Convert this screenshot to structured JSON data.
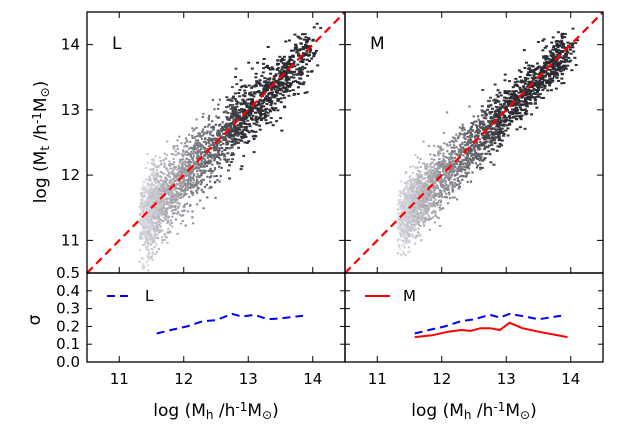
{
  "chart_data": {
    "type": "scatter",
    "colors": {
      "fit_line": "#ff0000",
      "sigma_L": "#0000ff",
      "sigma_M": "#ff0000",
      "points": "#3a3a44"
    },
    "shared": {
      "xlim": [
        10.5,
        14.5
      ],
      "x_ticks": [
        "11",
        "12",
        "13",
        "14"
      ],
      "x_tick_values": [
        11,
        12,
        13,
        14
      ],
      "top_ylim": [
        10.5,
        14.5
      ],
      "top_y_ticks": [
        "0.5",
        "11",
        "12",
        "13",
        "14"
      ],
      "top_y_tick_values": [
        10.5,
        11,
        12,
        13,
        14
      ],
      "bottom_ylim": [
        0.0,
        0.5
      ],
      "bottom_y_ticks": [
        "0.0",
        "0.1",
        "0.2",
        "0.3",
        "0.4"
      ],
      "bottom_y_tick_values": [
        0.0,
        0.1,
        0.2,
        0.3,
        0.4
      ]
    },
    "top_ylabel": {
      "main": "log (M",
      "sub": "t",
      "mid": " /h",
      "sup": "-1",
      "tail": "M",
      "sun_sub": "⊙",
      "close": ")"
    },
    "bottom_ylabel": "σ",
    "xlabel": {
      "main": "log (M",
      "sub": "h",
      "mid": " /h",
      "sup": "-1",
      "tail": "M",
      "sun_sub": "⊙",
      "close": ")"
    },
    "panels": [
      {
        "tag": "L",
        "scatter": {
          "description": "density of halos",
          "slope_fit": [
            [
              10.5,
              10.5
            ],
            [
              14.5,
              14.5
            ]
          ],
          "center": [
            [
              11.5,
              11.5
            ],
            [
              12.5,
              12.5
            ],
            [
              13.0,
              12.9
            ],
            [
              13.5,
              13.4
            ],
            [
              14.0,
              13.9
            ]
          ],
          "spread": 0.3
        },
        "legend_label": "L",
        "sigma_series": [
          {
            "name": "L",
            "style": "dashed",
            "x": [
              11.58,
              11.8,
              12.05,
              12.3,
              12.5,
              12.75,
              12.9,
              13.1,
              13.3,
              13.5,
              13.85
            ],
            "y": [
              0.16,
              0.18,
              0.2,
              0.23,
              0.235,
              0.27,
              0.255,
              0.265,
              0.24,
              0.245,
              0.26
            ]
          }
        ]
      },
      {
        "tag": "M",
        "scatter": {
          "description": "density of halos",
          "slope_fit": [
            [
              10.5,
              10.5
            ],
            [
              14.5,
              14.5
            ]
          ],
          "center": [
            [
              11.5,
              11.5
            ],
            [
              12.5,
              12.5
            ],
            [
              13.0,
              12.95
            ],
            [
              13.5,
              13.45
            ],
            [
              14.0,
              13.95
            ]
          ],
          "spread": 0.25
        },
        "legend_label": "M",
        "sigma_series": [
          {
            "name": "L",
            "style": "dashed",
            "x": [
              11.58,
              11.8,
              12.05,
              12.3,
              12.5,
              12.75,
              12.9,
              13.05,
              13.3,
              13.5,
              13.85
            ],
            "y": [
              0.16,
              0.18,
              0.2,
              0.23,
              0.24,
              0.265,
              0.25,
              0.27,
              0.255,
              0.24,
              0.26
            ]
          },
          {
            "name": "M",
            "style": "solid",
            "x": [
              11.58,
              11.85,
              12.1,
              12.3,
              12.45,
              12.6,
              12.75,
              12.9,
              13.05,
              13.25,
              13.5,
              13.95
            ],
            "y": [
              0.14,
              0.15,
              0.17,
              0.18,
              0.175,
              0.19,
              0.19,
              0.18,
              0.22,
              0.19,
              0.17,
              0.14
            ]
          }
        ]
      }
    ]
  }
}
